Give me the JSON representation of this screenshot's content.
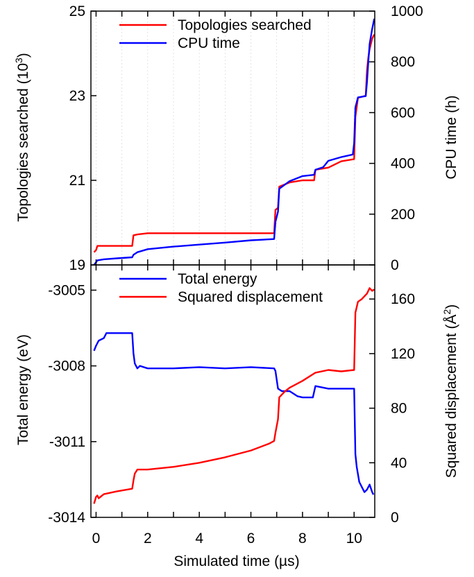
{
  "chart_data": [
    {
      "type": "line",
      "xlabel": "",
      "ylabel_left": "Topologies searched (10³)",
      "ylabel_left_main": "Topologies searched (10",
      "ylabel_left_sup": "3",
      "ylabel_left_close": ")",
      "ylabel_right": "CPU time (h)",
      "xlim": [
        -0.2,
        10.8
      ],
      "ylim_left": [
        19,
        25
      ],
      "ylim_right": [
        0,
        1000
      ],
      "left_ticks": [
        "19",
        "21",
        "23",
        "25"
      ],
      "right_ticks": [
        "0",
        "200",
        "400",
        "600",
        "800",
        "1000"
      ],
      "legend_position": "top-left",
      "series": [
        {
          "name": "Topologies searched",
          "axis": "left",
          "color": "#ff0000",
          "points": [
            [
              -0.08,
              19.3
            ],
            [
              0.0,
              19.35
            ],
            [
              0.05,
              19.45
            ],
            [
              1.4,
              19.45
            ],
            [
              1.45,
              19.7
            ],
            [
              1.6,
              19.72
            ],
            [
              2.0,
              19.75
            ],
            [
              4.0,
              19.75
            ],
            [
              6.0,
              19.75
            ],
            [
              6.9,
              19.75
            ],
            [
              6.95,
              20.3
            ],
            [
              7.05,
              20.35
            ],
            [
              7.1,
              20.85
            ],
            [
              7.5,
              20.95
            ],
            [
              8.0,
              21.0
            ],
            [
              8.45,
              21.0
            ],
            [
              8.5,
              21.25
            ],
            [
              8.8,
              21.28
            ],
            [
              9.0,
              21.3
            ],
            [
              9.5,
              21.45
            ],
            [
              10.0,
              21.5
            ],
            [
              10.05,
              22.5
            ],
            [
              10.15,
              22.95
            ],
            [
              10.45,
              23.0
            ],
            [
              10.5,
              23.6
            ],
            [
              10.55,
              23.9
            ],
            [
              10.6,
              24.1
            ],
            [
              10.7,
              24.35
            ],
            [
              10.78,
              24.45
            ]
          ]
        },
        {
          "name": "CPU time",
          "axis": "right",
          "color": "#0000ff",
          "points": [
            [
              -0.08,
              0
            ],
            [
              0.0,
              10
            ],
            [
              0.05,
              18
            ],
            [
              0.3,
              22
            ],
            [
              0.8,
              26
            ],
            [
              1.4,
              30
            ],
            [
              1.45,
              40
            ],
            [
              1.6,
              50
            ],
            [
              2.0,
              62
            ],
            [
              3.0,
              72
            ],
            [
              4.0,
              80
            ],
            [
              5.0,
              88
            ],
            [
              6.0,
              97
            ],
            [
              6.9,
              102
            ],
            [
              6.95,
              170
            ],
            [
              7.05,
              210
            ],
            [
              7.1,
              300
            ],
            [
              7.5,
              330
            ],
            [
              8.0,
              350
            ],
            [
              8.45,
              355
            ],
            [
              8.5,
              375
            ],
            [
              8.8,
              385
            ],
            [
              9.0,
              410
            ],
            [
              9.5,
              425
            ],
            [
              9.95,
              435
            ],
            [
              10.0,
              480
            ],
            [
              10.05,
              620
            ],
            [
              10.15,
              660
            ],
            [
              10.45,
              665
            ],
            [
              10.5,
              720
            ],
            [
              10.55,
              800
            ],
            [
              10.6,
              870
            ],
            [
              10.7,
              930
            ],
            [
              10.78,
              970
            ]
          ]
        }
      ]
    },
    {
      "type": "line",
      "xlabel": "Simulated time (µs)",
      "ylabel_left": "Total energy (eV)",
      "ylabel_right": "Squared displacement (Å²)",
      "ylabel_right_main": "Squared displacement (Å",
      "ylabel_right_sup": "2",
      "ylabel_right_close": ")",
      "xlim": [
        -0.2,
        10.8
      ],
      "xticks": [
        "0",
        "2",
        "4",
        "6",
        "8",
        "10"
      ],
      "ylim_left": [
        -3014,
        -3004
      ],
      "ylim_right": [
        0,
        185
      ],
      "left_ticks": [
        "-3014",
        "-3011",
        "-3008",
        "-3005"
      ],
      "right_ticks": [
        "0",
        "40",
        "80",
        "120",
        "160"
      ],
      "legend_position": "top-left",
      "series": [
        {
          "name": "Total energy",
          "axis": "left",
          "color": "#0000ff",
          "points": [
            [
              -0.08,
              -3007.4
            ],
            [
              0.0,
              -3007.2
            ],
            [
              0.1,
              -3007.0
            ],
            [
              0.3,
              -3006.9
            ],
            [
              0.4,
              -3006.7
            ],
            [
              1.4,
              -3006.7
            ],
            [
              1.45,
              -3007.5
            ],
            [
              1.5,
              -3007.9
            ],
            [
              1.6,
              -3008.1
            ],
            [
              1.7,
              -3008.0
            ],
            [
              2.0,
              -3008.1
            ],
            [
              3.0,
              -3008.1
            ],
            [
              4.0,
              -3008.05
            ],
            [
              5.0,
              -3008.1
            ],
            [
              6.0,
              -3008.05
            ],
            [
              6.9,
              -3008.1
            ],
            [
              6.95,
              -3008.2
            ],
            [
              7.05,
              -3008.9
            ],
            [
              7.2,
              -3009.0
            ],
            [
              7.5,
              -3009.0
            ],
            [
              7.8,
              -3009.2
            ],
            [
              8.0,
              -3009.25
            ],
            [
              8.4,
              -3009.25
            ],
            [
              8.5,
              -3008.8
            ],
            [
              9.0,
              -3008.9
            ],
            [
              9.5,
              -3008.9
            ],
            [
              10.0,
              -3008.9
            ],
            [
              10.05,
              -3011.5
            ],
            [
              10.1,
              -3012.0
            ],
            [
              10.2,
              -3012.6
            ],
            [
              10.4,
              -3013.0
            ],
            [
              10.5,
              -3012.9
            ],
            [
              10.6,
              -3012.7
            ],
            [
              10.7,
              -3013.0
            ],
            [
              10.75,
              -3013.1
            ]
          ]
        },
        {
          "name": "Squared displacement",
          "axis": "right",
          "color": "#ff0000",
          "points": [
            [
              -0.08,
              10
            ],
            [
              0.0,
              15
            ],
            [
              0.05,
              16
            ],
            [
              0.1,
              14
            ],
            [
              0.3,
              17
            ],
            [
              0.8,
              19
            ],
            [
              1.4,
              21
            ],
            [
              1.45,
              27
            ],
            [
              1.5,
              32
            ],
            [
              1.6,
              35
            ],
            [
              2.0,
              35
            ],
            [
              3.0,
              37
            ],
            [
              4.0,
              40
            ],
            [
              5.0,
              44
            ],
            [
              6.0,
              49
            ],
            [
              6.7,
              54
            ],
            [
              6.9,
              56
            ],
            [
              6.95,
              62
            ],
            [
              7.05,
              72
            ],
            [
              7.1,
              88
            ],
            [
              7.3,
              92
            ],
            [
              7.5,
              95
            ],
            [
              8.0,
              100
            ],
            [
              8.5,
              106
            ],
            [
              9.0,
              108
            ],
            [
              9.5,
              107
            ],
            [
              10.0,
              108
            ],
            [
              10.05,
              150
            ],
            [
              10.15,
              158
            ],
            [
              10.3,
              160
            ],
            [
              10.5,
              164
            ],
            [
              10.6,
              168
            ],
            [
              10.7,
              166
            ],
            [
              10.78,
              167
            ]
          ]
        }
      ]
    }
  ]
}
